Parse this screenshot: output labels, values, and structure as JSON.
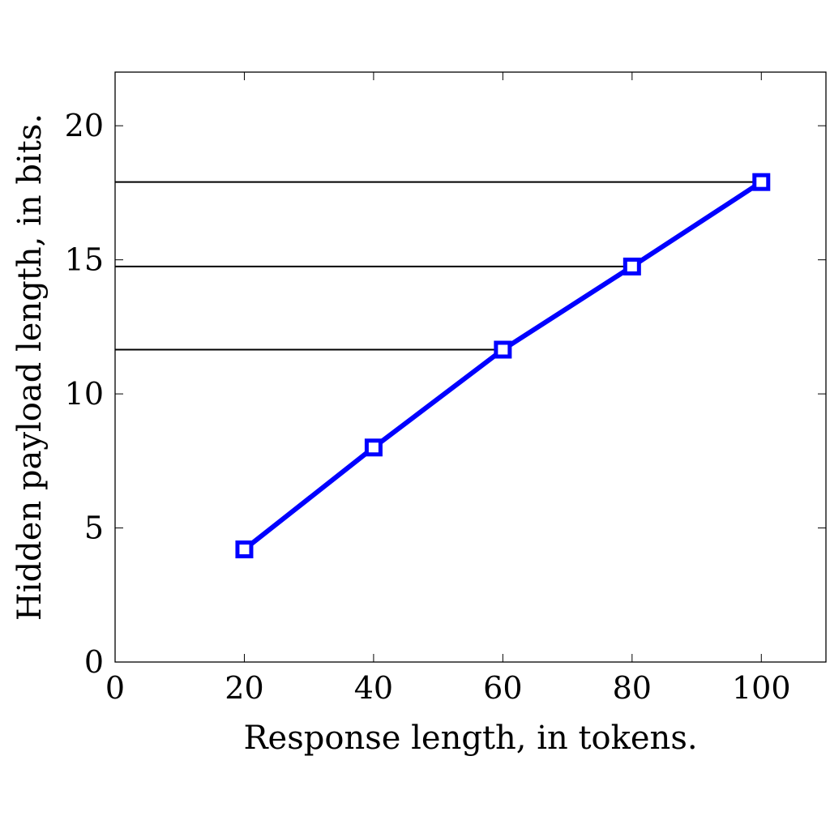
{
  "chart_data": {
    "type": "line",
    "title": "",
    "xlabel": "Response length, in tokens.",
    "ylabel": "Hidden payload length, in bits.",
    "xlim": [
      0,
      110
    ],
    "ylim": [
      0,
      22
    ],
    "xticks": [
      0,
      20,
      40,
      60,
      80,
      100
    ],
    "yticks": [
      0,
      5,
      10,
      15,
      20
    ],
    "xtick_labels": [
      "0",
      "20",
      "40",
      "60",
      "80",
      "100"
    ],
    "ytick_labels": [
      "0",
      "5",
      "10",
      "15",
      "20"
    ],
    "grid": false,
    "legend": "none",
    "series": [
      {
        "x": [
          20,
          40,
          60,
          80,
          100
        ],
        "values": [
          4.2,
          8.0,
          11.65,
          14.75,
          17.9
        ],
        "color": "#0000ff",
        "marker": "square"
      }
    ],
    "reference_lines": [
      {
        "y": 11.65,
        "x_end": 60,
        "color": "#000000"
      },
      {
        "y": 14.75,
        "x_end": 80,
        "color": "#000000"
      },
      {
        "y": 17.9,
        "x_end": 100,
        "color": "#000000"
      }
    ]
  }
}
